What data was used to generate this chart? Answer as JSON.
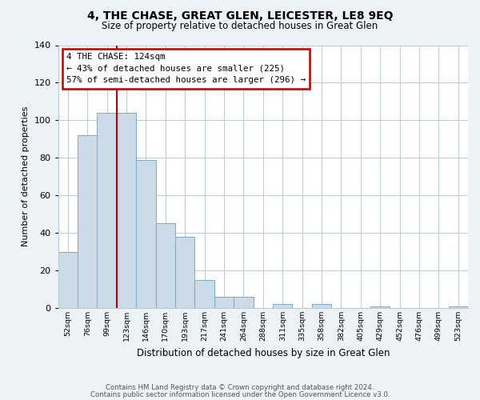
{
  "title": "4, THE CHASE, GREAT GLEN, LEICESTER, LE8 9EQ",
  "subtitle": "Size of property relative to detached houses in Great Glen",
  "xlabel": "Distribution of detached houses by size in Great Glen",
  "ylabel": "Number of detached properties",
  "bar_color": "#ccdbe8",
  "bar_edge_color": "#7aaac8",
  "categories": [
    "52sqm",
    "76sqm",
    "99sqm",
    "123sqm",
    "146sqm",
    "170sqm",
    "193sqm",
    "217sqm",
    "241sqm",
    "264sqm",
    "288sqm",
    "311sqm",
    "335sqm",
    "358sqm",
    "382sqm",
    "405sqm",
    "429sqm",
    "452sqm",
    "476sqm",
    "499sqm",
    "523sqm"
  ],
  "values": [
    30,
    92,
    104,
    104,
    79,
    45,
    38,
    15,
    6,
    6,
    0,
    2,
    0,
    2,
    0,
    0,
    1,
    0,
    0,
    0,
    1
  ],
  "vline_x": 3.0,
  "vline_color": "#bb0000",
  "annotation_text": "4 THE CHASE: 124sqm\n← 43% of detached houses are smaller (225)\n57% of semi-detached houses are larger (296) →",
  "annotation_box_color": "white",
  "annotation_box_edge_color": "#bb0000",
  "ylim": [
    0,
    140
  ],
  "yticks": [
    0,
    20,
    40,
    60,
    80,
    100,
    120,
    140
  ],
  "footer_line1": "Contains HM Land Registry data © Crown copyright and database right 2024.",
  "footer_line2": "Contains public sector information licensed under the Open Government Licence v3.0.",
  "bg_color": "#edf2f7",
  "plot_bg_color": "white",
  "grid_color": "#b8ccd8"
}
